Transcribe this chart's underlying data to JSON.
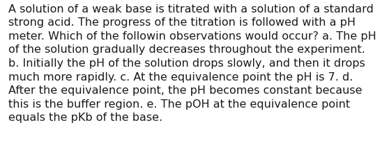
{
  "lines": [
    "A solution of a weak base is titrated with a solution of a standard",
    "strong acid. The progress of the titration is followed with a pH",
    "meter. Which of the followin observations would occur? a. The pH",
    "of the solution gradually decreases throughout the experiment.",
    "b. Initially the pH of the solution drops slowly, and then it drops",
    "much more rapidly. c. At the equivalence point the pH is 7. d.",
    "After the equivalence point, the pH becomes constant because",
    "this is the buffer region. e. The pOH at the equivalence point",
    "equals the pKb of the base."
  ],
  "background_color": "#ffffff",
  "text_color": "#1a1a1a",
  "font_size": 11.5,
  "font_family": "DejaVu Sans",
  "fig_width": 5.58,
  "fig_height": 2.3,
  "dpi": 100
}
